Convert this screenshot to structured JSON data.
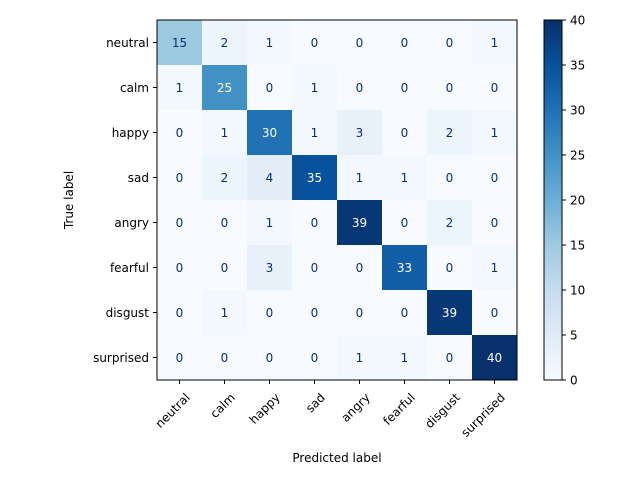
{
  "chart_data": {
    "type": "heatmap",
    "title": "",
    "xlabel": "Predicted label",
    "ylabel": "True label",
    "x_categories": [
      "neutral",
      "calm",
      "happy",
      "sad",
      "angry",
      "fearful",
      "disgust",
      "surprised"
    ],
    "y_categories": [
      "neutral",
      "calm",
      "happy",
      "sad",
      "angry",
      "fearful",
      "disgust",
      "surprised"
    ],
    "values": [
      [
        15,
        2,
        1,
        0,
        0,
        0,
        0,
        1
      ],
      [
        1,
        25,
        0,
        1,
        0,
        0,
        0,
        0
      ],
      [
        0,
        1,
        30,
        1,
        3,
        0,
        2,
        1
      ],
      [
        0,
        2,
        4,
        35,
        1,
        1,
        0,
        0
      ],
      [
        0,
        0,
        1,
        0,
        39,
        0,
        2,
        0
      ],
      [
        0,
        0,
        3,
        0,
        0,
        33,
        0,
        1
      ],
      [
        0,
        1,
        0,
        0,
        0,
        0,
        39,
        0
      ],
      [
        0,
        0,
        0,
        0,
        1,
        1,
        0,
        40
      ]
    ],
    "colormap": "Blues",
    "vmin": 0,
    "vmax": 40,
    "colorbar_ticks": [
      "0",
      "5",
      "10",
      "15",
      "20",
      "25",
      "30",
      "35",
      "40"
    ],
    "colors": {
      "low": "#f7fbff",
      "high": "#08306b",
      "text_dark": "#08306b",
      "text_light": "#ffffff"
    }
  }
}
